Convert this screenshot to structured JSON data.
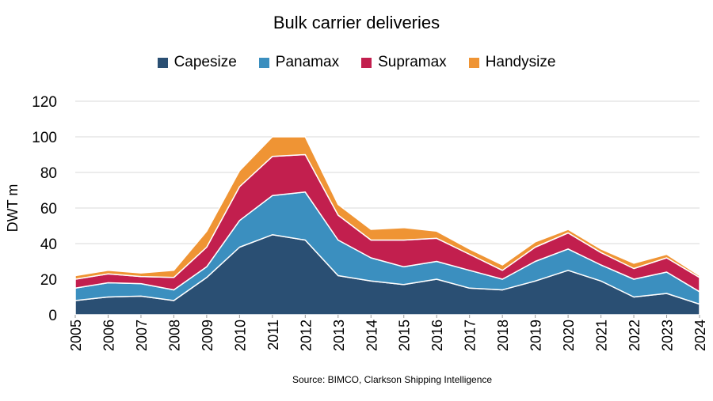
{
  "chart_data": {
    "type": "area",
    "stacked": true,
    "title": "Bulk carrier deliveries",
    "xlabel": "",
    "ylabel": "DWT m",
    "ylim": [
      0,
      120
    ],
    "yticks": [
      0,
      20,
      40,
      60,
      80,
      100,
      120
    ],
    "grid": true,
    "legend_position": "top",
    "x": [
      "2005",
      "2006",
      "2007",
      "2008",
      "2009",
      "2010",
      "2011",
      "2012",
      "2013",
      "2014",
      "2015",
      "2016",
      "2017",
      "2018",
      "2019",
      "2020",
      "2021",
      "2022",
      "2023",
      "2024"
    ],
    "series": [
      {
        "name": "Capesize",
        "color": "#2a4f73",
        "values": [
          8,
          10,
          10.5,
          8,
          21,
          38,
          45,
          42,
          22,
          19,
          17,
          20,
          15,
          14,
          19,
          25,
          19,
          10,
          12,
          6
        ]
      },
      {
        "name": "Panamax",
        "color": "#3b8fbf",
        "values": [
          7,
          8,
          7,
          6,
          6,
          15,
          22,
          27,
          20,
          13,
          10,
          10,
          10,
          6,
          11,
          12,
          9,
          10,
          12,
          7
        ]
      },
      {
        "name": "Supramax",
        "color": "#c21f4e",
        "values": [
          5,
          5,
          4,
          7,
          11,
          19,
          22,
          21,
          14,
          10,
          15,
          13,
          9,
          5,
          8,
          9,
          7,
          6,
          8,
          8
        ]
      },
      {
        "name": "Handysize",
        "color": "#ef9434",
        "values": [
          2,
          2,
          2,
          4,
          9,
          9,
          11,
          10,
          6,
          6,
          7,
          4,
          3,
          3,
          3,
          2,
          2,
          3,
          2,
          1
        ]
      }
    ],
    "source": "Source: BIMCO, Clarkson Shipping Intelligence"
  }
}
